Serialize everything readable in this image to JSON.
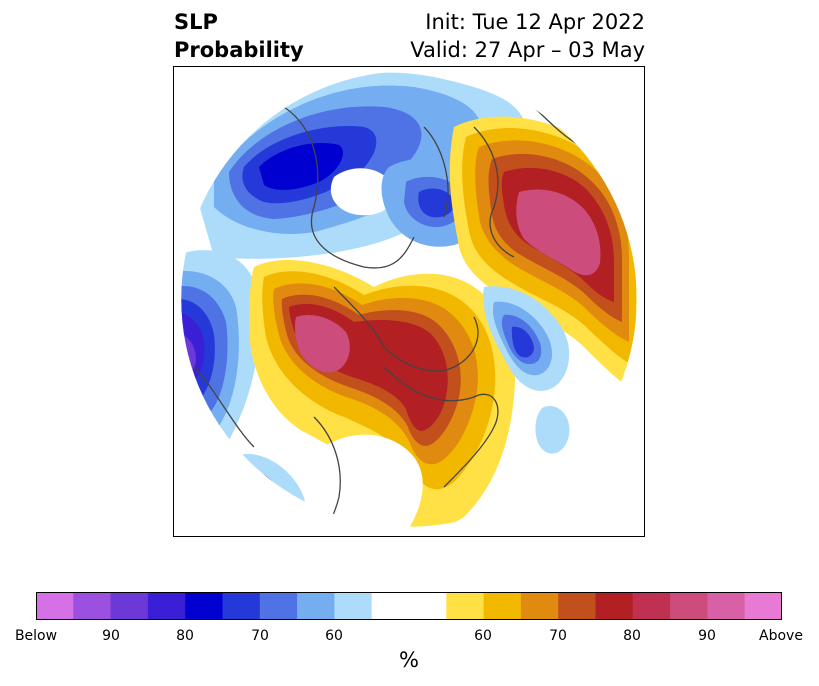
{
  "header": {
    "left_line1": "SLP",
    "left_line2": "Probability",
    "right_line1": "Init: Tue 12 Apr 2022",
    "right_line2": "Valid: 27 Apr – 03 May"
  },
  "colorbar": {
    "unit": "%",
    "colors": [
      "#d670e6",
      "#9c50e0",
      "#6c38d8",
      "#3a1fd6",
      "#0000d0",
      "#2439d8",
      "#4f72e4",
      "#74aef0",
      "#acdcfa",
      "#ffffff",
      "#ffffff",
      "#ffe045",
      "#f2b800",
      "#e08a10",
      "#c2501c",
      "#b22024",
      "#c03050",
      "#cc4c7c",
      "#d860a6",
      "#e87ad6"
    ],
    "labels": [
      "Below",
      "90",
      "80",
      "70",
      "60",
      "60",
      "70",
      "80",
      "90",
      "Above"
    ]
  },
  "legend_colors": {
    "below_strong": "#3a1fd6",
    "below_mid": "#4f72e4",
    "below_weak": "#acdcfa",
    "above_weak": "#ffe045",
    "above_mid": "#e08a10",
    "above_strong": "#b22024",
    "above_very": "#cc4c7c"
  }
}
